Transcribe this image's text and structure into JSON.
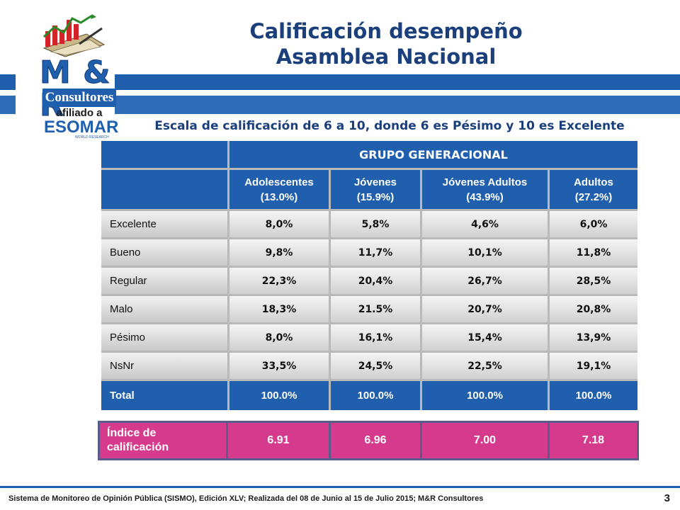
{
  "header": {
    "title_line1": "Calificación desempeño",
    "title_line2": "Asamblea Nacional"
  },
  "logo": {
    "brand": "M & R",
    "name": "Consultores",
    "affiliation": "afiliado a",
    "partner": "ESOMAR",
    "partner_sub": "WORLD RESEARCH"
  },
  "subtitle": "Escala de calificación de 6 a 10, donde 6 es Pésimo y 10 es Excelente",
  "table": {
    "group_header": "GRUPO GENERACIONAL",
    "columns": [
      {
        "name": "Adolescentes",
        "share": "(13.0%)"
      },
      {
        "name": "Jóvenes",
        "share": "(15.9%)"
      },
      {
        "name": "Jóvenes Adultos",
        "share": "(43.9%)"
      },
      {
        "name": "Adultos",
        "share": "(27.2%)"
      }
    ],
    "rows": [
      {
        "label": "Excelente",
        "values": [
          "8,0%",
          "5,8%",
          "4,6%",
          "6,0%"
        ]
      },
      {
        "label": "Bueno",
        "values": [
          "9,8%",
          "11,7%",
          "10,1%",
          "11,8%"
        ]
      },
      {
        "label": "Regular",
        "values": [
          "22,3%",
          "20,4%",
          "26,7%",
          "28,5%"
        ]
      },
      {
        "label": "Malo",
        "values": [
          "18,3%",
          "21.5%",
          "20,7%",
          "20,8%"
        ]
      },
      {
        "label": "Pésimo",
        "values": [
          "8,0%",
          "16,1%",
          "15,4%",
          "13,9%"
        ]
      },
      {
        "label": "NsNr",
        "values": [
          "33,5%",
          "24,5%",
          "22,5%",
          "19,1%"
        ]
      }
    ],
    "total": {
      "label": "Total",
      "values": [
        "100.0%",
        "100.0%",
        "100.0%",
        "100.0%"
      ]
    }
  },
  "index": {
    "label_line1": "Índice de",
    "label_line2": "calificación",
    "values": [
      "6.91",
      "6.96",
      "7.00",
      "7.18"
    ]
  },
  "footer": {
    "text": "Sistema de Monitoreo de Opinión Pública (SISMO), Edición XLV; Realizada del 08 de Junio al 15 de Julio 2015; M&R Consultores",
    "page_number": "3"
  },
  "colors": {
    "brand_blue": "#1f5fae",
    "title_navy": "#1b3f7a",
    "index_pink": "#d63a8c"
  }
}
